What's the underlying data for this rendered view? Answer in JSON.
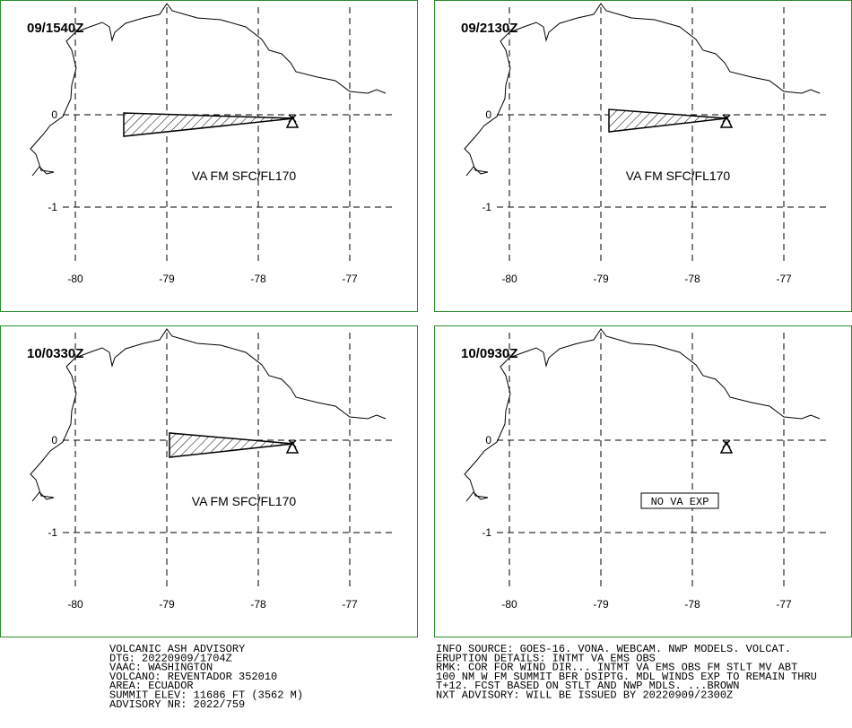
{
  "panels": [
    {
      "time": "09/1540Z",
      "label": "VA FM SFC/FL170"
    },
    {
      "time": "09/2130Z",
      "label": "VA FM SFC/FL170"
    },
    {
      "time": "10/0330Z",
      "label": "VA FM SFC/FL170"
    },
    {
      "time": "10/0930Z",
      "label": "NO VA EXP"
    }
  ],
  "lon_labels": [
    "-80",
    "-79",
    "-78",
    "-77"
  ],
  "lat_labels": [
    "0",
    "-1"
  ],
  "advisory_left": [
    "VOLCANIC ASH ADVISORY",
    "DTG: 20220909/1704Z",
    "VAAC: WASHINGTON",
    "VOLCANO: REVENTADOR 352010",
    "AREA: ECUADOR",
    "SUMMIT ELEV: 11686 FT (3562 M)",
    "ADVISORY NR: 2022/759"
  ],
  "advisory_right": [
    "INFO SOURCE: GOES-16. VONA. WEBCAM. NWP MODELS. VOLCAT.",
    "ERUPTION DETAILS: INTMT VA EMS OBS",
    "RMK: COR FOR WIND DIR... INTMT VA EMS OBS FM STLT MV ABT",
    "100 NM W FM SUMMIT BFR DSIPTG. MDL WINDS EXP TO REMAIN THRU",
    "T+12. FCST BASED ON STLT AND NWP MDLS. ...BROWN",
    "NXT ADVISORY: WILL BE ISSUED BY 20220909/2300Z"
  ]
}
